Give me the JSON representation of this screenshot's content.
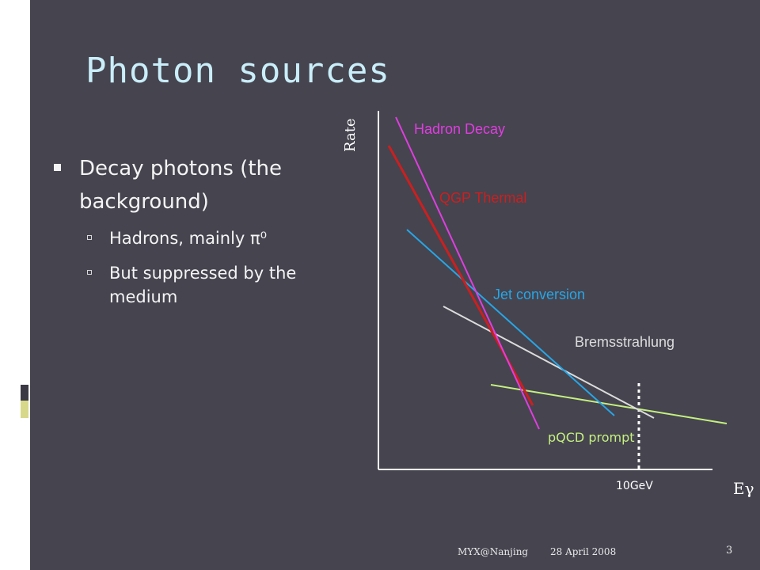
{
  "slide": {
    "title": "Photon sources",
    "bullets": [
      {
        "text": "Decay photons (the background)",
        "sub": [
          "Hadrons, mainly π⁰",
          "But suppressed by the medium"
        ]
      }
    ]
  },
  "diagram": {
    "y_axis_label": "Rate",
    "x_axis_label": "Eγ",
    "marker_label": "10GeV",
    "curves": [
      {
        "name": "Hadron Decay",
        "color": "#e03ee0"
      },
      {
        "name": "QGP Thermal",
        "color": "#cc1f1f"
      },
      {
        "name": "Jet conversion",
        "color": "#27a6e6"
      },
      {
        "name": "Bremsstrahlung",
        "color": "#dcdcdc"
      },
      {
        "name": "pQCD prompt",
        "color": "#c5f07f"
      }
    ]
  },
  "footer": {
    "author": "MYX@Nanjing",
    "date": "28 April 2008",
    "page_number": "3"
  },
  "colors": {
    "background": "#45444f",
    "title": "#c9eef9",
    "accent_sidebar": "#d8d88a"
  }
}
